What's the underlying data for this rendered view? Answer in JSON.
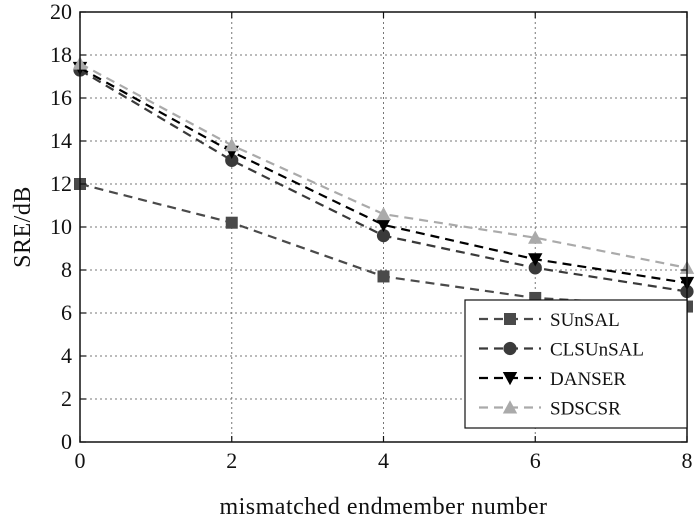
{
  "chart_data": {
    "type": "line",
    "xlabel": "mismatched endmember number",
    "ylabel": "SRE/dB",
    "xlim": [
      0,
      8
    ],
    "ylim": [
      0,
      20
    ],
    "xticks": [
      0,
      2,
      4,
      6,
      8
    ],
    "yticks": [
      0,
      2,
      4,
      6,
      8,
      10,
      12,
      14,
      16,
      18,
      20
    ],
    "grid": true,
    "legend_position": "lower-right",
    "x": [
      0,
      2,
      4,
      6,
      8
    ],
    "series": [
      {
        "name": "SUnSAL",
        "values": [
          12.0,
          10.2,
          7.7,
          6.7,
          6.3
        ],
        "color": "#4a4a4a",
        "marker": "square",
        "line": "dashed"
      },
      {
        "name": "CLSUnSAL",
        "values": [
          17.3,
          13.1,
          9.6,
          8.1,
          7.0
        ],
        "color": "#3a3a3a",
        "marker": "circle",
        "line": "dashed"
      },
      {
        "name": "DANSER",
        "values": [
          17.4,
          13.5,
          10.1,
          8.5,
          7.4
        ],
        "color": "#000000",
        "marker": "triangle-down",
        "line": "dashed"
      },
      {
        "name": "SDSCSR",
        "values": [
          17.6,
          13.8,
          10.6,
          9.5,
          8.1
        ],
        "color": "#aaaaaa",
        "marker": "triangle-up",
        "line": "dashed"
      }
    ]
  }
}
